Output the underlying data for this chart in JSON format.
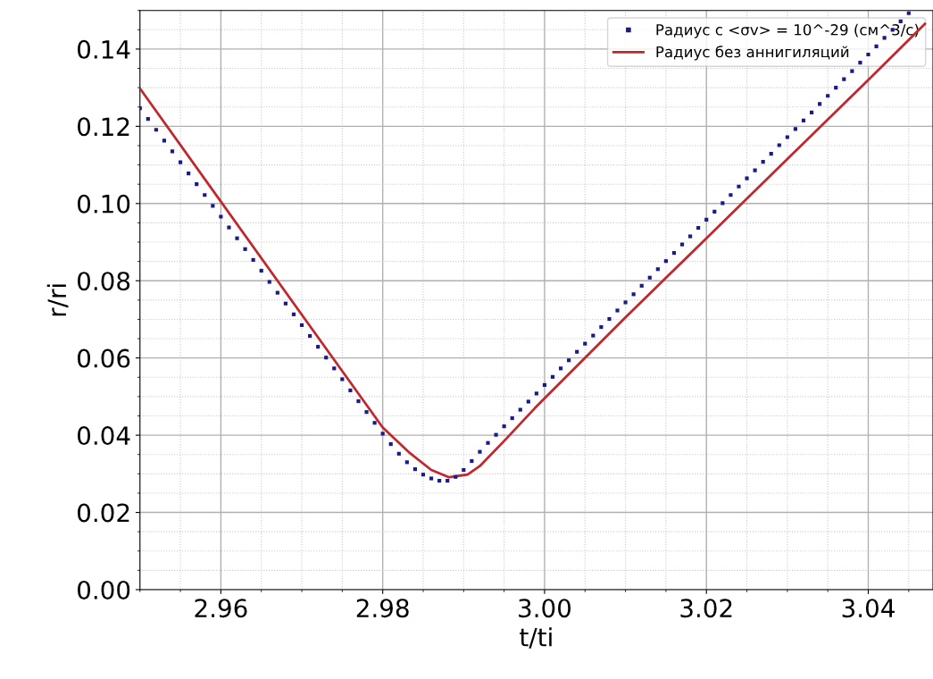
{
  "chart_data": {
    "type": "line",
    "xlabel": "t/ti",
    "ylabel": "r/ri",
    "xlim": [
      2.95,
      3.048
    ],
    "xticks": [
      {
        "value": 2.96,
        "label": "2.96"
      },
      {
        "value": 2.98,
        "label": "2.98"
      },
      {
        "value": 3.0,
        "label": "3.00"
      },
      {
        "value": 3.02,
        "label": "3.02"
      },
      {
        "value": 3.04,
        "label": "3.04"
      }
    ],
    "ylim": [
      0,
      0.15
    ],
    "yticks": [
      {
        "value": 0,
        "label": "0.00"
      },
      {
        "value": 0.02,
        "label": "0.02"
      },
      {
        "value": 0.04,
        "label": "0.04"
      },
      {
        "value": 0.06,
        "label": "0.06"
      },
      {
        "value": 0.08,
        "label": "0.08"
      },
      {
        "value": 0.1,
        "label": "0.10"
      },
      {
        "value": 0.12,
        "label": "0.12"
      },
      {
        "value": 0.14,
        "label": "0.14"
      }
    ],
    "grid": true,
    "legend": "top right",
    "series": [
      {
        "name": "Радиус с <σv> = 10^-29 (см^3/с)",
        "type": "scatter",
        "marker": "square",
        "color": "#1a1a8a",
        "x": [
          2.95,
          2.951,
          2.952,
          2.953,
          2.954,
          2.955,
          2.956,
          2.957,
          2.958,
          2.959,
          2.96,
          2.961,
          2.962,
          2.963,
          2.964,
          2.965,
          2.966,
          2.967,
          2.968,
          2.969,
          2.97,
          2.971,
          2.972,
          2.973,
          2.974,
          2.975,
          2.976,
          2.977,
          2.978,
          2.979,
          2.98,
          2.981,
          2.982,
          2.983,
          2.984,
          2.985,
          2.986,
          2.987,
          2.988,
          2.989,
          2.99,
          2.991,
          2.992,
          2.993,
          2.994,
          2.995,
          2.996,
          2.997,
          2.998,
          2.999,
          3.0,
          3.001,
          3.002,
          3.003,
          3.004,
          3.005,
          3.006,
          3.007,
          3.008,
          3.009,
          3.01,
          3.011,
          3.012,
          3.013,
          3.014,
          3.015,
          3.016,
          3.017,
          3.018,
          3.019,
          3.02,
          3.021,
          3.022,
          3.023,
          3.024,
          3.025,
          3.026,
          3.027,
          3.028,
          3.029,
          3.03,
          3.031,
          3.032,
          3.033,
          3.034,
          3.035,
          3.036,
          3.037,
          3.038,
          3.039,
          3.04,
          3.041,
          3.042,
          3.043,
          3.044,
          3.045
        ],
        "values": [
          0.1247,
          0.1219,
          0.1191,
          0.1163,
          0.1135,
          0.1107,
          0.1078,
          0.105,
          0.1022,
          0.0994,
          0.0966,
          0.0938,
          0.091,
          0.0882,
          0.0854,
          0.0826,
          0.0797,
          0.0769,
          0.0741,
          0.0713,
          0.0685,
          0.0657,
          0.0629,
          0.0601,
          0.0573,
          0.0545,
          0.0516,
          0.0488,
          0.046,
          0.0432,
          0.0404,
          0.0377,
          0.0352,
          0.033,
          0.0312,
          0.0298,
          0.0288,
          0.0282,
          0.0282,
          0.0292,
          0.031,
          0.0333,
          0.0357,
          0.038,
          0.0401,
          0.0423,
          0.0444,
          0.0466,
          0.0487,
          0.0508,
          0.053,
          0.0551,
          0.0573,
          0.0594,
          0.0616,
          0.0637,
          0.0658,
          0.068,
          0.0701,
          0.0723,
          0.0744,
          0.0765,
          0.0787,
          0.0808,
          0.083,
          0.0851,
          0.0872,
          0.0894,
          0.0915,
          0.0937,
          0.0958,
          0.0979,
          0.1001,
          0.1022,
          0.1044,
          0.1065,
          0.1086,
          0.1108,
          0.1129,
          0.1151,
          0.1172,
          0.1193,
          0.1215,
          0.1236,
          0.1258,
          0.1279,
          0.13,
          0.1322,
          0.1343,
          0.1365,
          0.1386,
          0.1407,
          0.1429,
          0.145,
          0.1472,
          0.1493
        ]
      },
      {
        "name": "Радиус без аннигиляций",
        "type": "line",
        "line_style": "solid",
        "color": "#c0282d",
        "x": [
          2.95,
          2.96,
          2.97,
          2.98,
          2.9834,
          2.986,
          2.9882,
          2.9905,
          2.992,
          2.995,
          2.9988,
          3.01,
          3.02,
          3.03,
          3.04,
          3.047
        ],
        "values": [
          0.1298,
          0.1005,
          0.0712,
          0.042,
          0.0353,
          0.031,
          0.0291,
          0.0298,
          0.032,
          0.0385,
          0.047,
          0.0705,
          0.091,
          0.1115,
          0.132,
          0.1465
        ]
      }
    ]
  }
}
